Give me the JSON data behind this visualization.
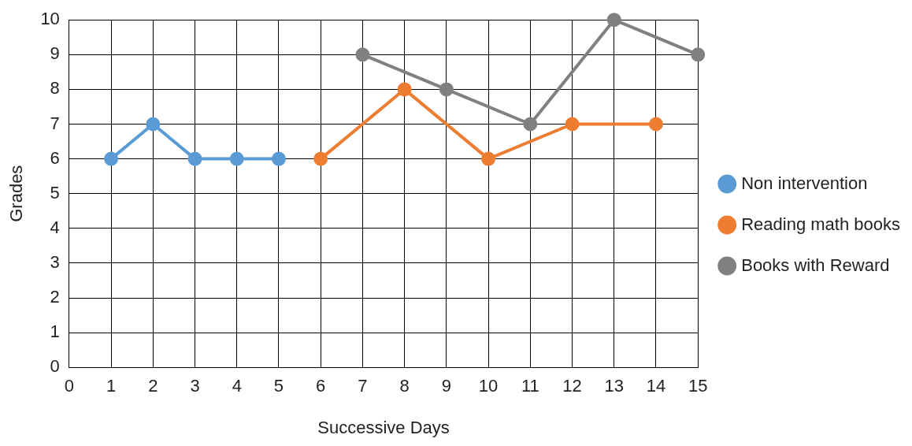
{
  "chart_data": {
    "type": "line",
    "xlabel": "Successive Days",
    "ylabel": "Grades",
    "xlim": [
      0,
      15
    ],
    "xticks": [
      0,
      1,
      2,
      3,
      4,
      5,
      6,
      7,
      8,
      9,
      10,
      11,
      12,
      13,
      14,
      15
    ],
    "ylim": [
      0,
      10
    ],
    "yticks": [
      0,
      1,
      2,
      3,
      4,
      5,
      6,
      7,
      8,
      9,
      10
    ],
    "grid": true,
    "legend": "right",
    "marker": "circle",
    "line_style": "solid",
    "series": [
      {
        "name": "Non intervention",
        "color": "#5b9bd5",
        "x": [
          1,
          2,
          3,
          4,
          5
        ],
        "values": [
          6,
          7,
          6,
          6,
          6
        ]
      },
      {
        "name": "Reading math books",
        "color": "#ed7d31",
        "x": [
          6,
          8,
          10,
          12,
          14
        ],
        "values": [
          6,
          8,
          6,
          7,
          7
        ]
      },
      {
        "name": "Books with Reward",
        "color": "#808080",
        "x": [
          7,
          9,
          11,
          13,
          15
        ],
        "values": [
          9,
          8,
          7,
          10,
          9
        ]
      }
    ]
  }
}
